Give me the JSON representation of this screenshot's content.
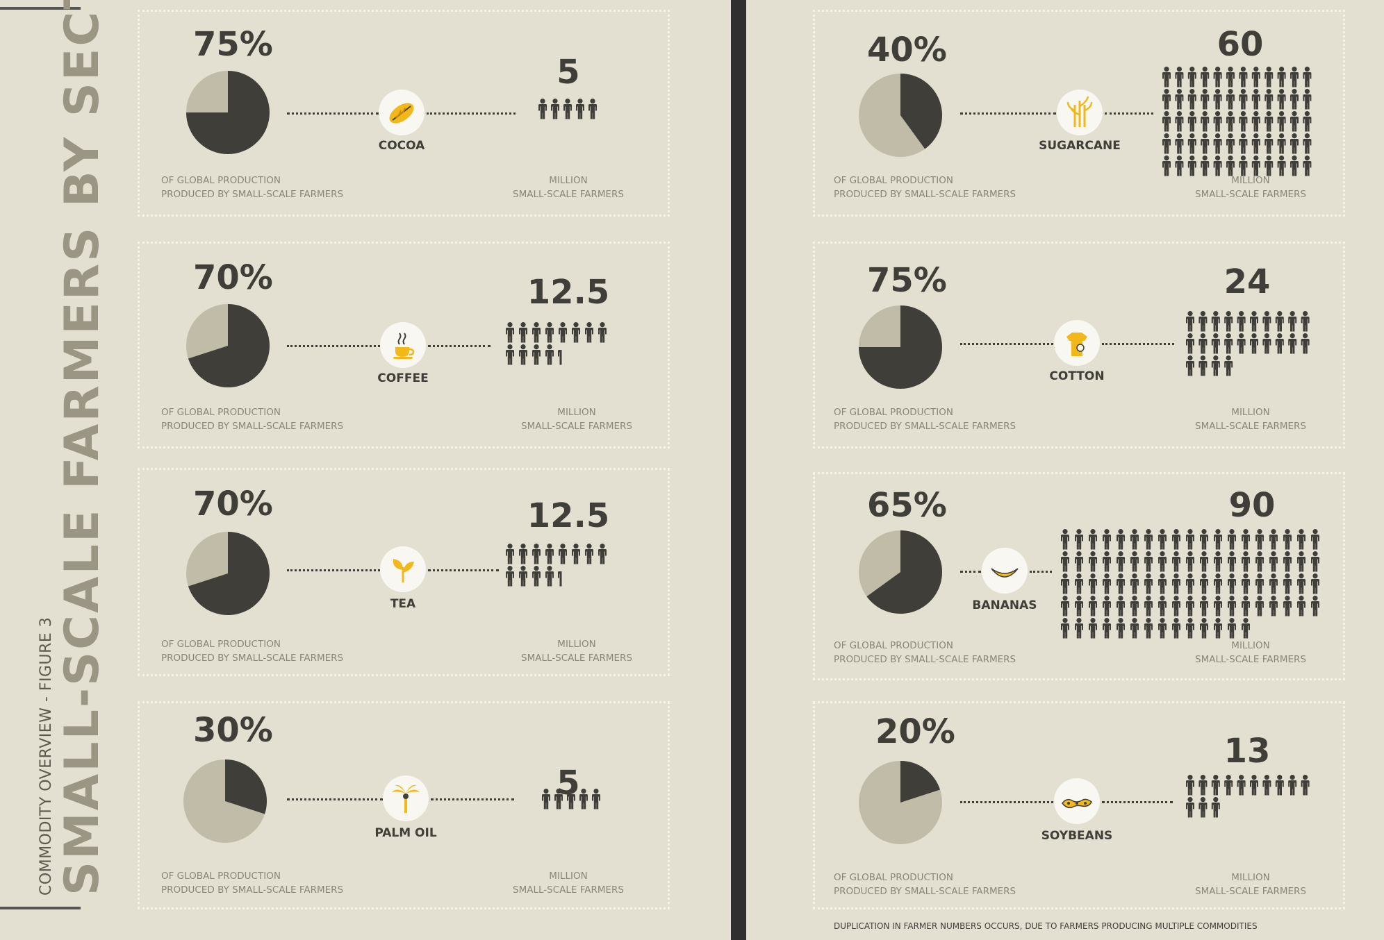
{
  "title": {
    "subtitle": "COMMODITY OVERVIEW - FIGURE 3",
    "main": "SMALL-SCALE FARMERS BY SECTOR"
  },
  "labels": {
    "production_line1": "OF GLOBAL PRODUCTION",
    "production_line2": "PRODUCED BY SMALL-SCALE FARMERS",
    "farmers_line1": "MILLION",
    "farmers_line2": "SMALL-SCALE FARMERS"
  },
  "colors": {
    "dark": "#3f3e39",
    "light": "#c1bca8",
    "accent": "#f2b81a",
    "background": "#e3e0d1"
  },
  "footnote": "DUPLICATION IN FARMER NUMBERS OCCURS, DUE TO FARMERS PRODUCING MULTIPLE COMMODITIES",
  "commodities": [
    {
      "name": "COCOA",
      "share_pct": "75%",
      "share": 75,
      "farmers_label": "5",
      "farmers": 5,
      "icon": "cocoa-pod-icon"
    },
    {
      "name": "COFFEE",
      "share_pct": "70%",
      "share": 70,
      "farmers_label": "12.5",
      "farmers": 12.5,
      "icon": "coffee-cup-icon"
    },
    {
      "name": "TEA",
      "share_pct": "70%",
      "share": 70,
      "farmers_label": "12.5",
      "farmers": 12.5,
      "icon": "tea-leaf-icon"
    },
    {
      "name": "PALM OIL",
      "share_pct": "30%",
      "share": 30,
      "farmers_label": "5",
      "farmers": 5,
      "icon": "palm-tree-icon"
    },
    {
      "name": "SUGARCANE",
      "share_pct": "40%",
      "share": 40,
      "farmers_label": "60",
      "farmers": 60,
      "icon": "sugarcane-icon"
    },
    {
      "name": "COTTON",
      "share_pct": "75%",
      "share": 75,
      "farmers_label": "24",
      "farmers": 24,
      "icon": "cotton-icon"
    },
    {
      "name": "BANANAS",
      "share_pct": "65%",
      "share": 65,
      "farmers_label": "90",
      "farmers": 90,
      "icon": "banana-icon"
    },
    {
      "name": "SOYBEANS",
      "share_pct": "20%",
      "share": 20,
      "farmers_label": "13",
      "farmers": 13,
      "icon": "soybean-icon"
    }
  ]
}
